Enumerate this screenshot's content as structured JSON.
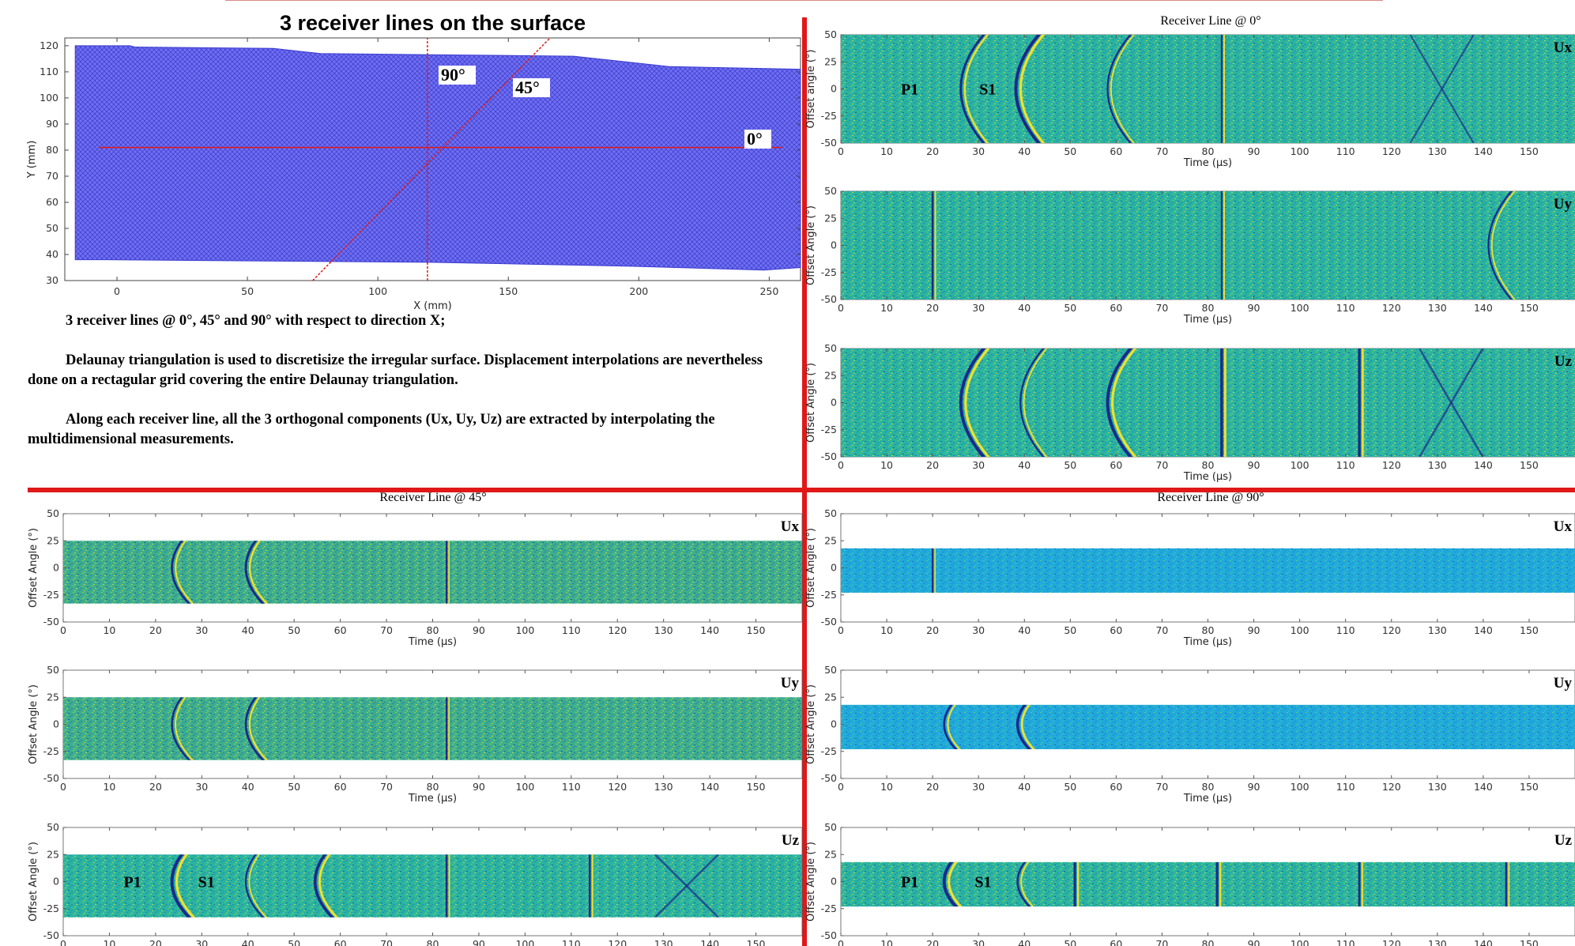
{
  "slide": {
    "main_title": "3 receiver lines on the surface",
    "paragraphs": [
      "3 receiver lines @ 0°, 45° and 90° with respect to direction X;",
      "Delaunay triangulation is used to discretisize the irregular surface. Displacement interpolations are nevertheless done on a rectagular grid covering the entire Delaunay triangulation.",
      "Along each receiver line, all the 3 orthogonal components (Ux, Uy, Uz) are extracted by interpolating the multidimensional measurements."
    ],
    "colors": {
      "divider": "#e01818",
      "mesh": "#3b3bd0",
      "mesh_fill": "#6f6ff0",
      "receiver_line": "#e01818",
      "field_bg": "#29b4a0",
      "field_bg_90": "#1faadb"
    }
  },
  "chart_data": [
    {
      "id": "surface",
      "type": "scatter",
      "title": "3 receiver lines on the surface",
      "xlabel": "X (mm)",
      "ylabel": "Y (mm)",
      "xlim": [
        -20,
        262
      ],
      "ylim": [
        30,
        123
      ],
      "xticks": [
        "0",
        "50",
        "100",
        "150",
        "200",
        "250"
      ],
      "yticks": [
        "30",
        "40",
        "50",
        "60",
        "70",
        "80",
        "90",
        "100",
        "110",
        "120"
      ],
      "surface_outline": [
        [
          -16,
          120
        ],
        [
          5,
          120
        ],
        [
          7,
          119.5
        ],
        [
          60,
          119
        ],
        [
          78,
          117
        ],
        [
          175,
          116
        ],
        [
          212,
          112
        ],
        [
          262,
          111
        ],
        [
          262,
          35
        ],
        [
          248,
          34
        ],
        [
          197,
          35.5
        ],
        [
          120,
          37
        ],
        [
          -5,
          38
        ],
        [
          -16,
          38
        ]
      ],
      "receiver_lines": [
        {
          "label": "0°",
          "from": [
            -7,
            81
          ],
          "to": [
            255,
            81
          ]
        },
        {
          "label": "90°",
          "from": [
            119,
            30
          ],
          "to": [
            119,
            123
          ]
        },
        {
          "label": "45°",
          "from": [
            75,
            30
          ],
          "to": [
            166,
            123
          ]
        }
      ],
      "center": [
        119,
        81
      ]
    },
    {
      "id": "line0",
      "type": "heatmap",
      "title": "Receiver Line @ 0°",
      "xlabel": "Time (μs)",
      "xlim": [
        0,
        160
      ],
      "ylim": [
        -50,
        50
      ],
      "xticks": [
        "0",
        "10",
        "20",
        "30",
        "40",
        "50",
        "60",
        "70",
        "80",
        "90",
        "100",
        "110",
        "120",
        "130",
        "140",
        "150"
      ],
      "yticks": [
        "50",
        "25",
        "0",
        "-25",
        "-50"
      ],
      "panels": [
        {
          "component": "Ux",
          "ylabel": "Offset angle (°)",
          "data_range": [
            -50,
            50
          ],
          "events": [
            {
              "t": 20,
              "kind": "hyper",
              "amp": 1.5
            },
            {
              "t": 32,
              "kind": "hyper",
              "amp": 2.5
            },
            {
              "t": 52,
              "kind": "hyper",
              "amp": 0.8
            },
            {
              "t": 83,
              "kind": "vert",
              "amp": 0.7
            },
            {
              "t": 131,
              "kind": "cross",
              "amp": 0.6
            }
          ],
          "labels": [
            {
              "text": "P1",
              "t": 15,
              "a": 0
            },
            {
              "text": "S1",
              "t": 32,
              "a": 0
            }
          ]
        },
        {
          "component": "Uy",
          "ylabel": "Offset Angle (°)",
          "data_range": [
            -50,
            50
          ],
          "events": [
            {
              "t": 20,
              "kind": "vert",
              "amp": 0.9
            },
            {
              "t": 83,
              "kind": "vert",
              "amp": 0.7
            },
            {
              "t": 135,
              "kind": "hyper",
              "amp": 0.8
            }
          ],
          "labels": []
        },
        {
          "component": "Uz",
          "ylabel": "Offset Angle (°)",
          "data_range": [
            -50,
            50
          ],
          "events": [
            {
              "t": 20,
              "kind": "hyper",
              "amp": 2.5
            },
            {
              "t": 33,
              "kind": "hyper",
              "amp": 0.8
            },
            {
              "t": 52,
              "kind": "hyper",
              "amp": 2.5
            },
            {
              "t": 83,
              "kind": "vert",
              "amp": 2
            },
            {
              "t": 113,
              "kind": "vert",
              "amp": 1.8
            },
            {
              "t": 133,
              "kind": "cross",
              "amp": 1
            }
          ],
          "labels": []
        }
      ]
    },
    {
      "id": "line45",
      "type": "heatmap",
      "title": "Receiver Line @ 45°",
      "xlabel": "Time (μs)",
      "xlim": [
        0,
        160
      ],
      "ylim": [
        -50,
        50
      ],
      "xticks": [
        "0",
        "10",
        "20",
        "30",
        "40",
        "50",
        "60",
        "70",
        "80",
        "90",
        "100",
        "110",
        "120",
        "130",
        "140",
        "150"
      ],
      "yticks": [
        "50",
        "25",
        "0",
        "-25",
        "-50"
      ],
      "panels": [
        {
          "component": "Ux",
          "ylabel": "Offset Angle (°)",
          "data_range": [
            -33,
            25
          ],
          "events": [
            {
              "t": 20,
              "kind": "hyper",
              "amp": 1.2
            },
            {
              "t": 36,
              "kind": "hyper",
              "amp": 1.5
            },
            {
              "t": 83,
              "kind": "vert",
              "amp": 0.6
            }
          ],
          "labels": []
        },
        {
          "component": "Uy",
          "ylabel": "Offset Angle (°)",
          "data_range": [
            -33,
            25
          ],
          "events": [
            {
              "t": 20,
              "kind": "hyper",
              "amp": 1
            },
            {
              "t": 36,
              "kind": "hyper",
              "amp": 1.3
            },
            {
              "t": 83,
              "kind": "vert",
              "amp": 0.6
            }
          ],
          "labels": []
        },
        {
          "component": "Uz",
          "ylabel": "Offset Angle (°)",
          "data_range": [
            -33,
            25
          ],
          "events": [
            {
              "t": 20,
              "kind": "hyper",
              "amp": 2.5
            },
            {
              "t": 36,
              "kind": "hyper",
              "amp": 0.8
            },
            {
              "t": 51,
              "kind": "hyper",
              "amp": 2.2
            },
            {
              "t": 83,
              "kind": "vert",
              "amp": 1
            },
            {
              "t": 114,
              "kind": "vert",
              "amp": 1
            },
            {
              "t": 135,
              "kind": "cross",
              "amp": 1
            }
          ],
          "labels": [
            {
              "text": "P1",
              "t": 15,
              "a": 0
            },
            {
              "text": "S1",
              "t": 31,
              "a": 0
            }
          ]
        }
      ]
    },
    {
      "id": "line90",
      "type": "heatmap",
      "title": "Receiver Line @ 90°",
      "xlabel": "Time (μs)",
      "xlim": [
        0,
        160
      ],
      "ylim": [
        -50,
        50
      ],
      "xticks": [
        "0",
        "10",
        "20",
        "30",
        "40",
        "50",
        "60",
        "70",
        "80",
        "90",
        "100",
        "110",
        "120",
        "130",
        "140",
        "150"
      ],
      "yticks": [
        "50",
        "25",
        "0",
        "-25",
        "-50"
      ],
      "panels": [
        {
          "component": "Ux",
          "ylabel": "Offset Angle (°)",
          "data_range": [
            -23,
            18
          ],
          "events": [
            {
              "t": 20,
              "kind": "vert",
              "amp": 0.5
            }
          ],
          "labels": []
        },
        {
          "component": "Uy",
          "ylabel": "Offset Angle (°)",
          "data_range": [
            -23,
            18
          ],
          "events": [
            {
              "t": 20,
              "kind": "hyper",
              "amp": 1.2
            },
            {
              "t": 36,
              "kind": "hyper",
              "amp": 2
            }
          ],
          "labels": []
        },
        {
          "component": "Uz",
          "ylabel": "Offset Angle (°)",
          "data_range": [
            -23,
            18
          ],
          "events": [
            {
              "t": 20,
              "kind": "hyper",
              "amp": 2.5
            },
            {
              "t": 36,
              "kind": "hyper",
              "amp": 1
            },
            {
              "t": 51,
              "kind": "vert",
              "amp": 1.5
            },
            {
              "t": 82,
              "kind": "vert",
              "amp": 1.5
            },
            {
              "t": 113,
              "kind": "vert",
              "amp": 1.2
            },
            {
              "t": 145,
              "kind": "vert",
              "amp": 1
            }
          ],
          "labels": [
            {
              "text": "P1",
              "t": 15,
              "a": 0
            },
            {
              "text": "S1",
              "t": 31,
              "a": 0
            }
          ]
        }
      ]
    }
  ]
}
